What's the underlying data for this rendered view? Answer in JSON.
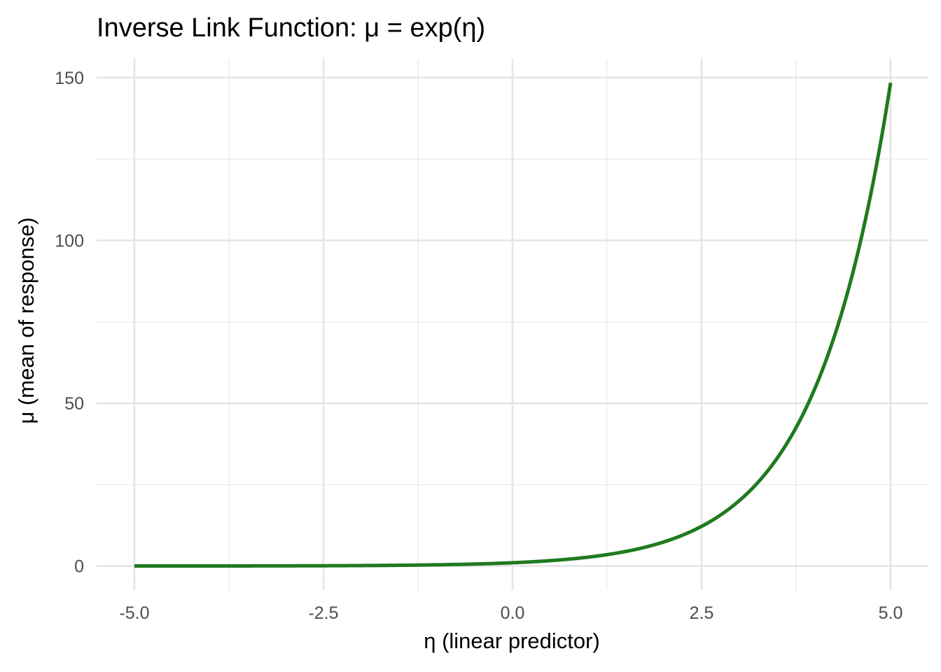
{
  "chart_data": {
    "type": "line",
    "title": "Inverse Link Function: μ = exp(η)",
    "xlabel": "η (linear predictor)",
    "ylabel": "μ (mean of response)",
    "xlim": [
      -5.5,
      5.5
    ],
    "ylim": [
      -7.4,
      155.8
    ],
    "x_ticks": [
      -5.0,
      -2.5,
      0.0,
      2.5,
      5.0
    ],
    "x_tick_labels": [
      "-5.0",
      "-2.5",
      "0.0",
      "2.5",
      "5.0"
    ],
    "x_minor_ticks": [
      -3.75,
      -1.25,
      1.25,
      3.75
    ],
    "y_ticks": [
      0,
      50,
      100,
      150
    ],
    "y_tick_labels": [
      "0",
      "50",
      "100",
      "150"
    ],
    "y_minor_ticks": [
      25,
      75,
      125
    ],
    "grid": true,
    "legend": "none",
    "series": [
      {
        "function": "exp",
        "color": "#1f7a1f",
        "x": [
          -5.0,
          -4.5,
          -4.0,
          -3.5,
          -3.0,
          -2.5,
          -2.0,
          -1.5,
          -1.0,
          -0.5,
          0.0,
          0.25,
          0.5,
          0.75,
          1.0,
          1.25,
          1.5,
          1.75,
          2.0,
          2.25,
          2.5,
          2.75,
          3.0,
          3.25,
          3.5,
          3.75,
          4.0,
          4.125,
          4.25,
          4.375,
          4.5,
          4.625,
          4.75,
          4.875,
          5.0
        ],
        "y": [
          0.0067,
          0.0111,
          0.0183,
          0.0302,
          0.0498,
          0.0821,
          0.1353,
          0.2231,
          0.3679,
          0.6065,
          1.0,
          1.284,
          1.6487,
          2.117,
          2.7183,
          3.4903,
          4.4817,
          5.7546,
          7.3891,
          9.4877,
          12.1825,
          15.6426,
          20.0855,
          25.7903,
          33.1155,
          42.5211,
          54.5982,
          61.8678,
          70.1054,
          79.4398,
          90.0171,
          102.0028,
          115.5843,
          130.9741,
          148.4132
        ]
      }
    ]
  }
}
